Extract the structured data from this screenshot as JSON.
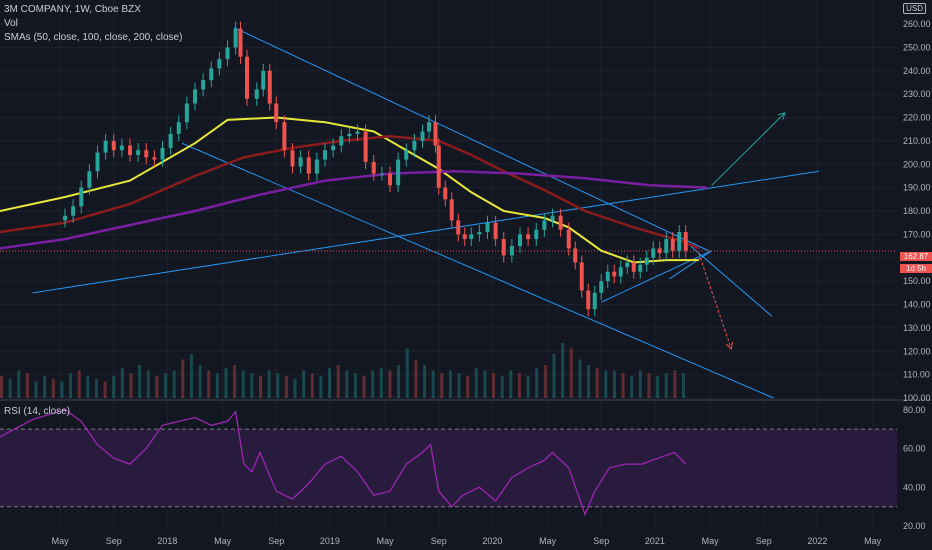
{
  "header": {
    "title": "3M COMPANY, 1W, Cboe BZX",
    "vol_label": "Vol",
    "sma_label": "SMAs (50, close, 100, close, 200, close)",
    "rsi_label": "RSI (14, close)",
    "currency": "USD",
    "last_price": "162.87",
    "countdown": "1d 5h"
  },
  "colors": {
    "background": "#131722",
    "up": "#26a69a",
    "down": "#ef5350",
    "sma50": "#e8e83a",
    "sma100": "#8b1c1c",
    "sma200": "#7b1fa2",
    "trendline": "#2196f3",
    "rsi": "#9c27b0",
    "rsi_band": "#3b1f55"
  },
  "chart_data": [
    {
      "type": "line",
      "subtype": "candlestick",
      "y_ticks": [
        "260.00",
        "250.00",
        "240.00",
        "230.00",
        "220.00",
        "210.00",
        "200.00",
        "190.00",
        "180.00",
        "170.00",
        "160.00",
        "150.00",
        "140.00",
        "130.00",
        "120.00",
        "110.00",
        "100.00"
      ],
      "ylim": [
        100,
        266
      ],
      "x_ticks": [
        "May",
        "Sep",
        "2018",
        "May",
        "Sep",
        "2019",
        "May",
        "Sep",
        "2020",
        "May",
        "Sep",
        "2021",
        "May",
        "Sep",
        "2022",
        "May"
      ],
      "series": [
        {
          "key": "close",
          "points": [
            [
              2017.0,
              178
            ],
            [
              2017.05,
              182
            ],
            [
              2017.1,
              190
            ],
            [
              2017.15,
              197
            ],
            [
              2017.2,
              205
            ],
            [
              2017.25,
              210
            ],
            [
              2017.3,
              206
            ],
            [
              2017.35,
              208
            ],
            [
              2017.4,
              204
            ],
            [
              2017.45,
              206
            ],
            [
              2017.5,
              203
            ],
            [
              2017.55,
              202
            ],
            [
              2017.6,
              207
            ],
            [
              2017.65,
              213
            ],
            [
              2017.7,
              218
            ],
            [
              2017.75,
              226
            ],
            [
              2017.8,
              232
            ],
            [
              2017.85,
              236
            ],
            [
              2017.9,
              241
            ],
            [
              2017.95,
              245
            ],
            [
              2018.0,
              250
            ],
            [
              2018.05,
              258
            ],
            [
              2018.08,
              246
            ],
            [
              2018.12,
              228
            ],
            [
              2018.18,
              232
            ],
            [
              2018.22,
              240
            ],
            [
              2018.26,
              226
            ],
            [
              2018.3,
              218
            ],
            [
              2018.35,
              206
            ],
            [
              2018.4,
              199
            ],
            [
              2018.45,
              203
            ],
            [
              2018.5,
              196
            ],
            [
              2018.55,
              202
            ],
            [
              2018.6,
              206
            ],
            [
              2018.65,
              208
            ],
            [
              2018.7,
              212
            ],
            [
              2018.75,
              213
            ],
            [
              2018.8,
              214
            ],
            [
              2018.85,
              201
            ],
            [
              2018.9,
              196
            ],
            [
              2018.95,
              196
            ],
            [
              2019.0,
              191
            ],
            [
              2019.05,
              202
            ],
            [
              2019.1,
              206
            ],
            [
              2019.15,
              210
            ],
            [
              2019.2,
              214
            ],
            [
              2019.24,
              218
            ],
            [
              2019.28,
              208
            ],
            [
              2019.3,
              190
            ],
            [
              2019.34,
              185
            ],
            [
              2019.38,
              176
            ],
            [
              2019.42,
              170
            ],
            [
              2019.46,
              168
            ],
            [
              2019.5,
              170
            ],
            [
              2019.55,
              171
            ],
            [
              2019.6,
              175
            ],
            [
              2019.65,
              168
            ],
            [
              2019.7,
              161
            ],
            [
              2019.75,
              165
            ],
            [
              2019.8,
              170
            ],
            [
              2019.85,
              168
            ],
            [
              2019.9,
              172
            ],
            [
              2019.95,
              176
            ],
            [
              2020.0,
              178
            ],
            [
              2020.05,
              172
            ],
            [
              2020.1,
              164
            ],
            [
              2020.14,
              158
            ],
            [
              2020.18,
              146
            ],
            [
              2020.22,
              138
            ],
            [
              2020.26,
              145
            ],
            [
              2020.3,
              150
            ],
            [
              2020.34,
              154
            ],
            [
              2020.38,
              152
            ],
            [
              2020.42,
              156
            ],
            [
              2020.46,
              158
            ],
            [
              2020.5,
              154
            ],
            [
              2020.54,
              157
            ],
            [
              2020.58,
              160
            ],
            [
              2020.62,
              164
            ],
            [
              2020.66,
              162
            ],
            [
              2020.7,
              168
            ],
            [
              2020.74,
              163
            ],
            [
              2020.78,
              171
            ],
            [
              2020.82,
              163
            ]
          ]
        },
        {
          "key": "sma50",
          "points": [
            [
              2016.6,
              180
            ],
            [
              2017.0,
              186
            ],
            [
              2017.4,
              193
            ],
            [
              2017.8,
              209
            ],
            [
              2018.0,
              219
            ],
            [
              2018.3,
              220
            ],
            [
              2018.6,
              218
            ],
            [
              2018.9,
              214
            ],
            [
              2019.1,
              206
            ],
            [
              2019.3,
              198
            ],
            [
              2019.5,
              188
            ],
            [
              2019.7,
              180
            ],
            [
              2019.95,
              177
            ],
            [
              2020.1,
              173
            ],
            [
              2020.3,
              163
            ],
            [
              2020.5,
              158
            ],
            [
              2020.7,
              159
            ],
            [
              2020.9,
              159
            ]
          ]
        },
        {
          "key": "sma100",
          "points": [
            [
              2016.6,
              171
            ],
            [
              2017.0,
              175
            ],
            [
              2017.4,
              183
            ],
            [
              2017.8,
              195
            ],
            [
              2018.1,
              203
            ],
            [
              2018.4,
              207
            ],
            [
              2018.7,
              210
            ],
            [
              2019.0,
              212
            ],
            [
              2019.3,
              210
            ],
            [
              2019.5,
              204
            ],
            [
              2019.7,
              197
            ],
            [
              2019.95,
              189
            ],
            [
              2020.2,
              180
            ],
            [
              2020.5,
              173
            ],
            [
              2020.8,
              167
            ],
            [
              2020.9,
              164
            ]
          ]
        },
        {
          "key": "sma200",
          "points": [
            [
              2016.6,
              164
            ],
            [
              2017.0,
              168
            ],
            [
              2017.4,
              174
            ],
            [
              2017.8,
              180
            ],
            [
              2018.2,
              187
            ],
            [
              2018.6,
              193
            ],
            [
              2019.0,
              196
            ],
            [
              2019.4,
              197
            ],
            [
              2019.8,
              196
            ],
            [
              2020.2,
              194
            ],
            [
              2020.6,
              191
            ],
            [
              2020.95,
              190
            ]
          ]
        }
      ],
      "annotations": {
        "trendlines": [
          [
            [
              2018.04,
              258.5
            ],
            [
              2020.96,
              163
            ]
          ],
          [
            [
              2017.72,
              209
            ],
            [
              2021.36,
              100
            ]
          ],
          [
            [
              2016.8,
              145
            ],
            [
              2021.64,
              197
            ]
          ],
          [
            [
              2020.85,
              165
            ],
            [
              2021.35,
              135
            ]
          ],
          [
            [
              2020.3,
              141
            ],
            [
              2020.98,
              163
            ]
          ],
          [
            [
              2020.72,
              151
            ],
            [
              2020.98,
              163
            ]
          ]
        ],
        "arrows": [
          {
            "from": [
              2020.98,
              191
            ],
            "to": [
              2021.43,
              222
            ],
            "color": "#26a69a"
          },
          {
            "from": [
              2020.9,
              162
            ],
            "to": [
              2021.1,
              121
            ],
            "color": "#ef5350"
          }
        ],
        "last_price_line": 162.87
      }
    },
    {
      "type": "line",
      "subtype": "rsi",
      "title": "RSI (14, close)",
      "y_ticks": [
        "80.00",
        "60.00",
        "40.00",
        "20.00"
      ],
      "ylim": [
        18,
        84
      ],
      "band": [
        30,
        70
      ],
      "points": [
        [
          2016.6,
          66
        ],
        [
          2016.8,
          75
        ],
        [
          2017.0,
          80
        ],
        [
          2017.1,
          74
        ],
        [
          2017.2,
          62
        ],
        [
          2017.3,
          55
        ],
        [
          2017.4,
          52
        ],
        [
          2017.5,
          60
        ],
        [
          2017.6,
          72
        ],
        [
          2017.7,
          74
        ],
        [
          2017.8,
          76
        ],
        [
          2017.9,
          72
        ],
        [
          2018.0,
          74
        ],
        [
          2018.05,
          79
        ],
        [
          2018.1,
          52
        ],
        [
          2018.15,
          48
        ],
        [
          2018.2,
          58
        ],
        [
          2018.3,
          38
        ],
        [
          2018.4,
          34
        ],
        [
          2018.5,
          42
        ],
        [
          2018.6,
          52
        ],
        [
          2018.7,
          56
        ],
        [
          2018.8,
          48
        ],
        [
          2018.9,
          36
        ],
        [
          2019.0,
          38
        ],
        [
          2019.1,
          52
        ],
        [
          2019.2,
          58
        ],
        [
          2019.25,
          62
        ],
        [
          2019.3,
          38
        ],
        [
          2019.38,
          30
        ],
        [
          2019.45,
          36
        ],
        [
          2019.55,
          40
        ],
        [
          2019.65,
          33
        ],
        [
          2019.75,
          45
        ],
        [
          2019.85,
          50
        ],
        [
          2019.95,
          54
        ],
        [
          2020.0,
          58
        ],
        [
          2020.1,
          50
        ],
        [
          2020.15,
          38
        ],
        [
          2020.2,
          26
        ],
        [
          2020.26,
          38
        ],
        [
          2020.35,
          50
        ],
        [
          2020.45,
          52
        ],
        [
          2020.55,
          52
        ],
        [
          2020.65,
          55
        ],
        [
          2020.75,
          58
        ],
        [
          2020.82,
          52
        ]
      ]
    },
    {
      "type": "bar",
      "subtype": "volume",
      "note": "relative volume bars along price pane bottom",
      "values": [
        0.4,
        0.35,
        0.5,
        0.45,
        0.3,
        0.4,
        0.35,
        0.3,
        0.45,
        0.5,
        0.4,
        0.35,
        0.3,
        0.4,
        0.55,
        0.45,
        0.6,
        0.5,
        0.4,
        0.45,
        0.5,
        0.7,
        0.8,
        0.6,
        0.5,
        0.45,
        0.55,
        0.6,
        0.5,
        0.45,
        0.4,
        0.5,
        0.45,
        0.4,
        0.35,
        0.5,
        0.45,
        0.4,
        0.55,
        0.6,
        0.5,
        0.45,
        0.4,
        0.5,
        0.55,
        0.5,
        0.6,
        0.9,
        0.7,
        0.6,
        0.5,
        0.45,
        0.5,
        0.45,
        0.4,
        0.55,
        0.5,
        0.45,
        0.4,
        0.5,
        0.45,
        0.4,
        0.55,
        0.6,
        0.8,
        1.0,
        0.9,
        0.7,
        0.6,
        0.55,
        0.5,
        0.5,
        0.45,
        0.4,
        0.5,
        0.45,
        0.4,
        0.45,
        0.5,
        0.45
      ]
    }
  ]
}
